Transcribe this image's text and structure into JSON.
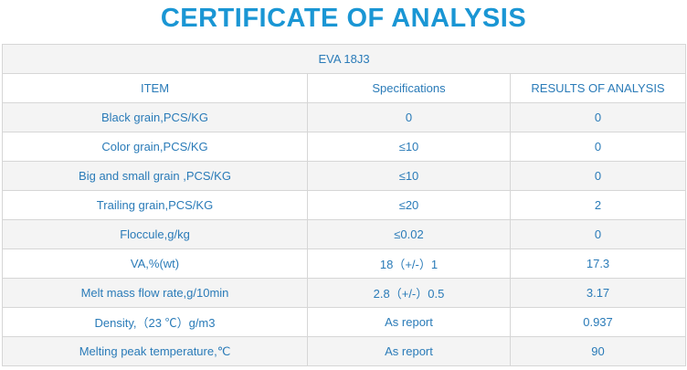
{
  "title": "CERTIFICATE OF ANALYSIS",
  "product": "EVA 18J3",
  "headers": {
    "item": "ITEM",
    "specifications": "Specifications",
    "results": "RESULTS OF ANALYSIS"
  },
  "rows": [
    {
      "item": "Black grain,PCS/KG",
      "spec": "0",
      "result": "0"
    },
    {
      "item": "Color grain,PCS/KG",
      "spec": "≤10",
      "result": "0"
    },
    {
      "item": "Big and small grain ,PCS/KG",
      "spec": "≤10",
      "result": "0"
    },
    {
      "item": "Trailing grain,PCS/KG",
      "spec": "≤20",
      "result": "2"
    },
    {
      "item": "Floccule,g/kg",
      "spec": "≤0.02",
      "result": "0"
    },
    {
      "item": "VA,%(wt)",
      "spec": "18（+/-）1",
      "result": "17.3"
    },
    {
      "item": "Melt mass flow rate,g/10min",
      "spec": "2.8（+/-）0.5",
      "result": "3.17"
    },
    {
      "item": "Density,（23 ℃）g/m3",
      "spec": "As report",
      "result": "0.937"
    },
    {
      "item": "Melting peak temperature,℃",
      "spec": "As report",
      "result": "90"
    }
  ],
  "colors": {
    "title": "#1a96d4",
    "text": "#2a7bb8",
    "border": "#d6d6d6",
    "row_stripe": "#f4f4f4"
  }
}
